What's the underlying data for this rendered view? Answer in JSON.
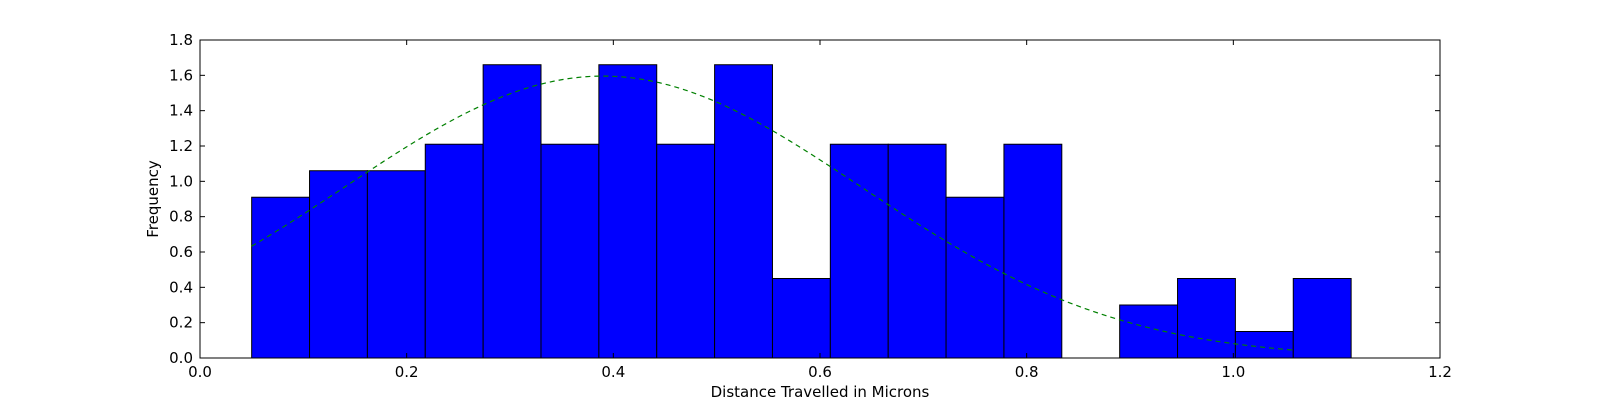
{
  "chart_data": {
    "type": "bar",
    "subtype": "histogram",
    "xlabel": "Distance Travelled in Microns",
    "ylabel": "Frequency",
    "xlim": [
      0.0,
      1.2
    ],
    "ylim": [
      0.0,
      1.8
    ],
    "xticks": [
      "0.0",
      "0.2",
      "0.4",
      "0.6",
      "0.8",
      "1.0",
      "1.2"
    ],
    "yticks": [
      "0.0",
      "0.2",
      "0.4",
      "0.6",
      "0.8",
      "1.0",
      "1.2",
      "1.4",
      "1.6",
      "1.8"
    ],
    "bin_edges": [
      0.05,
      0.106,
      0.162,
      0.218,
      0.274,
      0.33,
      0.386,
      0.442,
      0.498,
      0.554,
      0.61,
      0.666,
      0.722,
      0.778,
      0.834,
      0.89,
      0.946,
      1.002,
      1.058,
      1.114
    ],
    "values": [
      0.91,
      1.06,
      1.06,
      1.21,
      1.66,
      1.21,
      1.66,
      1.21,
      1.66,
      0.45,
      1.21,
      1.21,
      0.91,
      1.21,
      0.0,
      0.3,
      0.45,
      0.15,
      0.45
    ],
    "fit_curve": {
      "style": "dashed",
      "mean": 0.39,
      "sd": 0.25,
      "x_range": [
        0.05,
        1.058
      ]
    },
    "grid": false,
    "legend": "none",
    "colors": {
      "bars": "#0000ff",
      "bar_edge": "#000000",
      "fit_curve": "#008000"
    }
  }
}
